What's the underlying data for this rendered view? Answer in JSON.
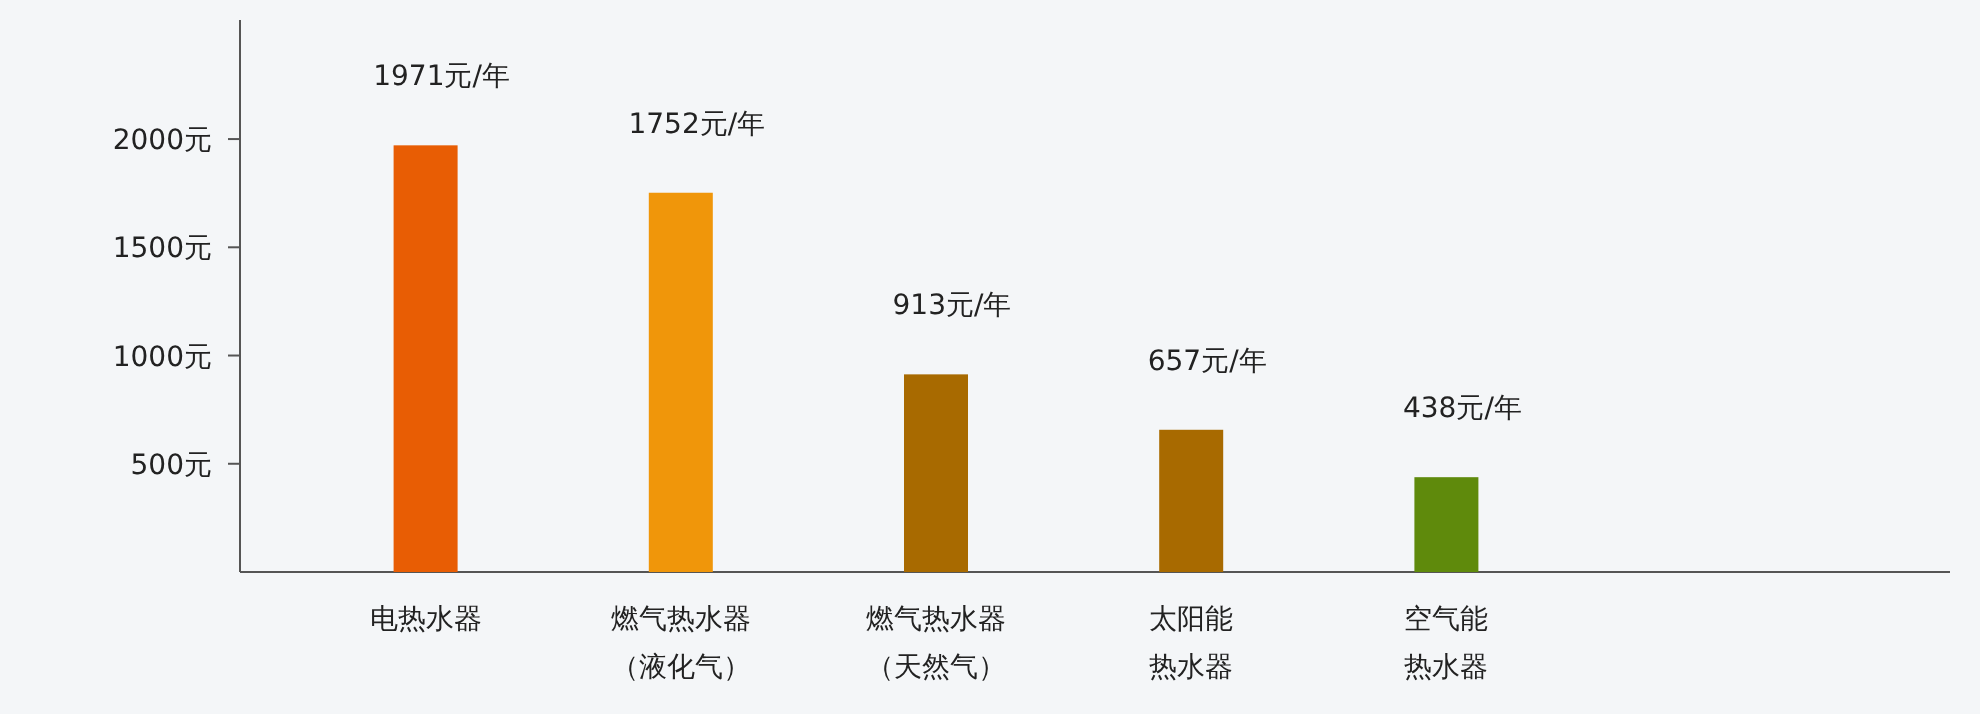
{
  "chart_data": {
    "type": "bar",
    "categories": [
      "电热水器",
      "燃气热水器（液化气）",
      "燃气热水器（天然气）",
      "太阳能热水器",
      "空气能热水器"
    ],
    "values": [
      1971,
      1752,
      913,
      657,
      438
    ],
    "colors": [
      "#e85d04",
      "#f0960a",
      "#a86a00",
      "#a86a00",
      "#5f8a0c"
    ],
    "value_labels": [
      "1971元/年",
      "1752元/年",
      "913元/年",
      "657元/年",
      "438元/年"
    ],
    "ylim": [
      0,
      2550
    ],
    "yticks": [
      {
        "value": 500,
        "label": "500元"
      },
      {
        "value": 1000,
        "label": "1000元"
      },
      {
        "value": 1500,
        "label": "1500元"
      },
      {
        "value": 2000,
        "label": "2000元"
      }
    ],
    "grid": false
  }
}
